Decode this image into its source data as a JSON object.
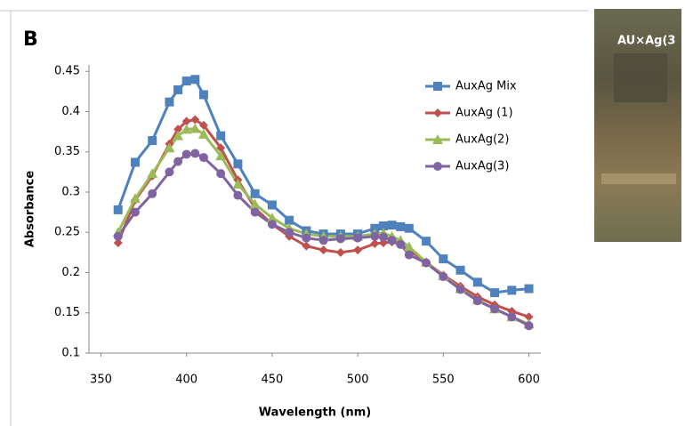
{
  "chart_data": {
    "type": "line",
    "panel_label": "B",
    "x_label": "Wavelength (nm)",
    "y_label": "Absorbance",
    "x": [
      360,
      370,
      380,
      390,
      395,
      400,
      405,
      410,
      420,
      430,
      440,
      450,
      460,
      470,
      480,
      490,
      500,
      510,
      515,
      520,
      525,
      530,
      540,
      550,
      560,
      570,
      580,
      590,
      600
    ],
    "series": [
      {
        "name": "AuxAg Mix",
        "color": "#4f81bd",
        "marker": "square",
        "values": [
          0.278,
          0.337,
          0.364,
          0.412,
          0.427,
          0.438,
          0.44,
          0.421,
          0.37,
          0.335,
          0.298,
          0.284,
          0.265,
          0.252,
          0.248,
          0.248,
          0.248,
          0.255,
          0.258,
          0.259,
          0.257,
          0.255,
          0.239,
          0.217,
          0.203,
          0.188,
          0.175,
          0.178,
          0.18
        ]
      },
      {
        "name": "AuxAg (1)",
        "color": "#c0504d",
        "marker": "diamond",
        "values": [
          0.237,
          0.29,
          0.32,
          0.36,
          0.378,
          0.388,
          0.39,
          0.383,
          0.355,
          0.315,
          0.28,
          0.26,
          0.245,
          0.233,
          0.228,
          0.225,
          0.228,
          0.236,
          0.237,
          0.238,
          0.235,
          0.228,
          0.213,
          0.197,
          0.183,
          0.17,
          0.16,
          0.152,
          0.145
        ]
      },
      {
        "name": "AuxAg(2)",
        "color": "#9bbb59",
        "marker": "triangle",
        "values": [
          0.25,
          0.292,
          0.323,
          0.355,
          0.37,
          0.378,
          0.379,
          0.372,
          0.345,
          0.31,
          0.285,
          0.268,
          0.255,
          0.248,
          0.245,
          0.245,
          0.245,
          0.248,
          0.249,
          0.245,
          0.24,
          0.232,
          0.213,
          0.196,
          0.18,
          0.166,
          0.155,
          0.145,
          0.136
        ]
      },
      {
        "name": "AuxAg(3)",
        "color": "#8064a2",
        "marker": "circle",
        "values": [
          0.245,
          0.275,
          0.298,
          0.325,
          0.338,
          0.347,
          0.348,
          0.343,
          0.323,
          0.296,
          0.275,
          0.26,
          0.25,
          0.243,
          0.24,
          0.242,
          0.243,
          0.245,
          0.244,
          0.24,
          0.235,
          0.222,
          0.212,
          0.195,
          0.179,
          0.165,
          0.155,
          0.145,
          0.134
        ]
      }
    ],
    "xlim": [
      343,
      607
    ],
    "xticks": [
      350,
      400,
      450,
      500,
      550,
      600
    ],
    "ylim": [
      0.1,
      0.458
    ],
    "yticks": [
      0.1,
      0.15,
      0.2,
      0.25,
      0.3,
      0.35,
      0.4,
      0.45
    ],
    "grid": false,
    "legend": "upper right"
  },
  "photo_label": "AU×Ag(3"
}
